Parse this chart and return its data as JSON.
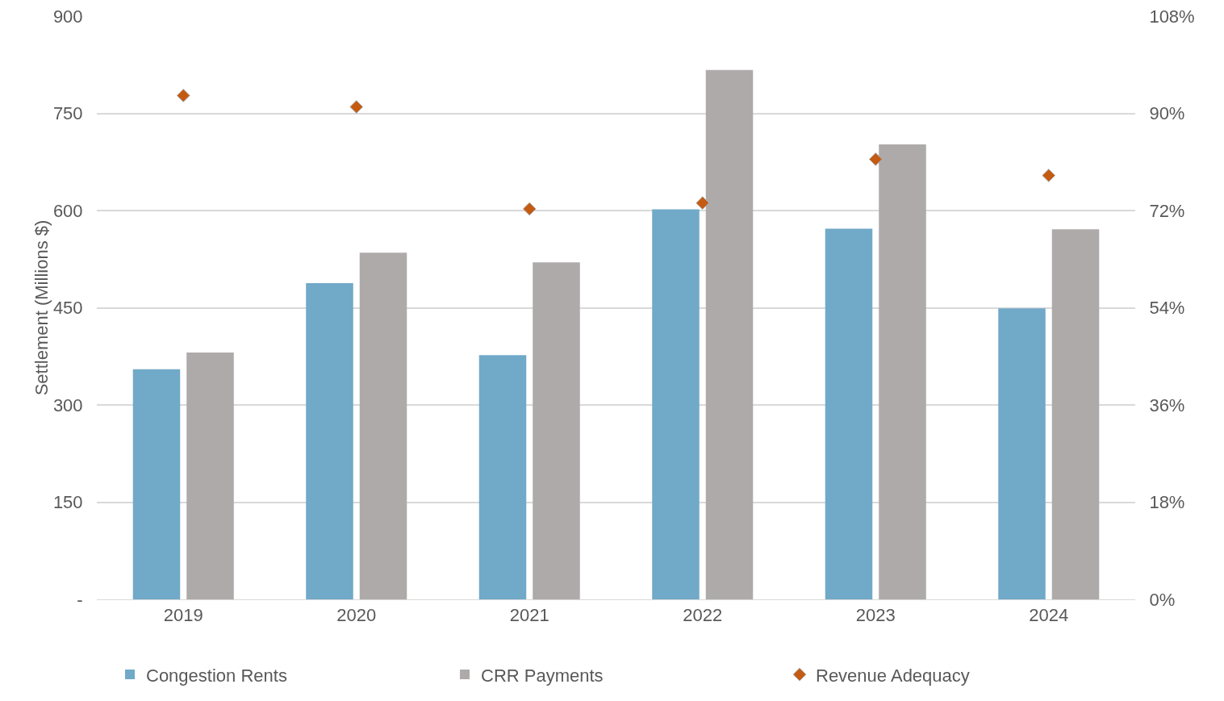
{
  "chart_data": {
    "type": "bar",
    "ylabel": "Settlement (Millions $)",
    "categories": [
      "2019",
      "2020",
      "2021",
      "2022",
      "2023",
      "2024"
    ],
    "series": [
      {
        "name": "Congestion Rents",
        "color": "#71a9c8",
        "values": [
          355,
          488,
          377,
          602,
          572,
          449
        ]
      },
      {
        "name": "CRR Payments",
        "color": "#aeaaaa",
        "values": [
          381,
          535,
          520,
          817,
          702,
          571
        ]
      },
      {
        "name": "Revenue Adequacy",
        "type": "scatter",
        "axis": "y2",
        "marker": "diamond",
        "color": "#c55a11",
        "values": [
          93.3,
          91.2,
          72.3,
          73.4,
          81.5,
          78.5
        ]
      }
    ],
    "ylim": [
      0,
      900
    ],
    "yticks": [
      {
        "value": 0,
        "label": "-"
      },
      150,
      300,
      450,
      600,
      750,
      900
    ],
    "y2lim": [
      0,
      108
    ],
    "y2ticks": [
      {
        "value": 0,
        "label": "0%"
      },
      {
        "value": 18,
        "label": "18%"
      },
      {
        "value": 36,
        "label": "36%"
      },
      {
        "value": 54,
        "label": "54%"
      },
      {
        "value": 72,
        "label": "72%"
      },
      {
        "value": 90,
        "label": "90%"
      },
      {
        "value": 108,
        "label": "108%"
      }
    ],
    "grid": "y",
    "legend": "bottom"
  }
}
